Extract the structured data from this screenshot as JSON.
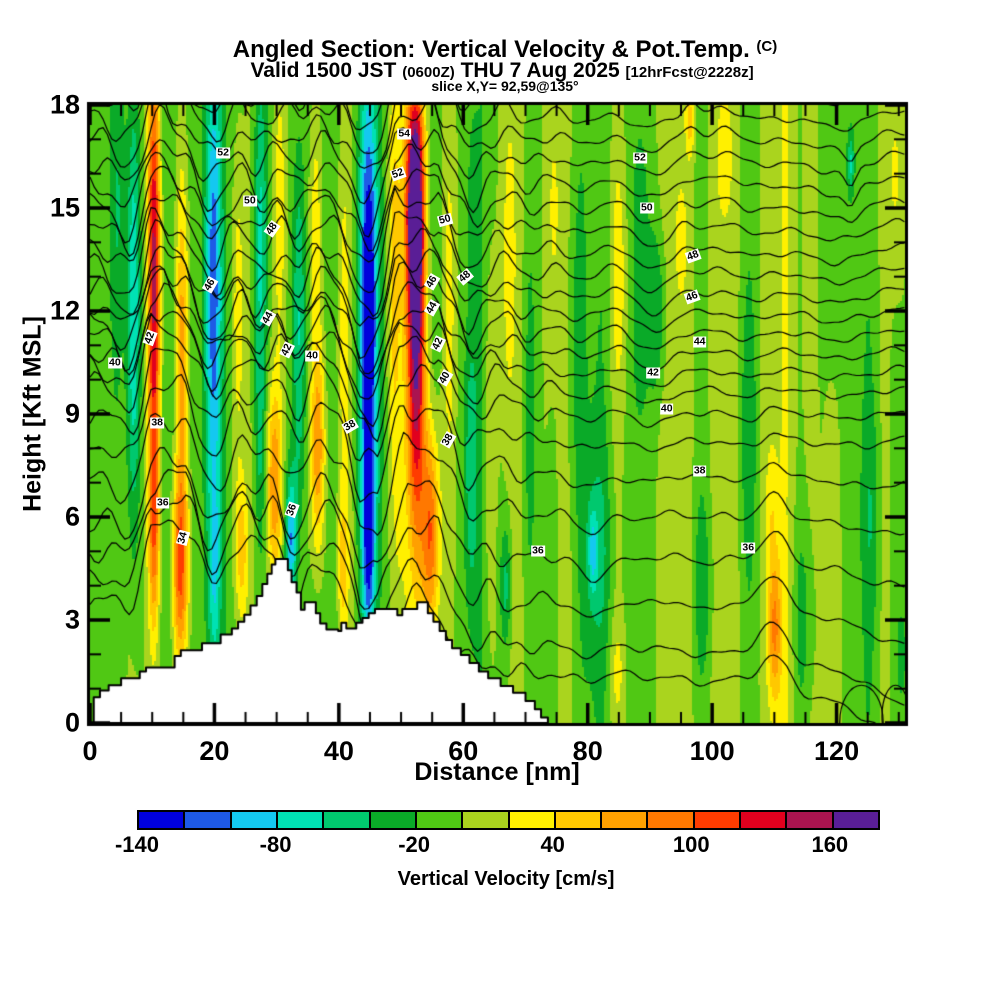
{
  "header": {
    "title_main": "Angled Section: Vertical Velocity & Pot.Temp.",
    "title_unit": "(C)",
    "valid_prefix": "Valid 1500 JST",
    "valid_small1": "(0600Z)",
    "valid_mid": "THU 7 Aug 2025",
    "valid_small2": "[12hrFcst@2228z]",
    "slice_line": "slice X,Y= 92,59@135°"
  },
  "chart_data": {
    "type": "heatmap",
    "title": "Angled Section: Vertical Velocity & Pot.Temp. (C)",
    "subtitle": "Valid 1500 JST (0600Z) THU 7 Aug 2025 [12hrFcst@2228z]",
    "slice": "slice X,Y= 92,59@135°",
    "xlabel": "Distance [nm]",
    "ylabel": "Height [Kft MSL]",
    "xlim": [
      0,
      131
    ],
    "ylim": [
      0,
      18
    ],
    "x_major_ticks": [
      0,
      20,
      40,
      60,
      80,
      100,
      120
    ],
    "x_minor_step": 5,
    "y_major_ticks": [
      0,
      3,
      6,
      9,
      12,
      15,
      18
    ],
    "y_minor_step": 1,
    "grid": false,
    "colorbar": {
      "label": "Vertical Velocity [cm/s]",
      "min": -140,
      "max": 180,
      "step": 20,
      "tick_values": [
        -140,
        -80,
        -20,
        40,
        100,
        160
      ],
      "colors": [
        "#0000DC",
        "#1E5AE6",
        "#14C8F0",
        "#00E1B4",
        "#00C86E",
        "#0AAA28",
        "#50C814",
        "#AAD41E",
        "#FFF000",
        "#FFC800",
        "#FFA000",
        "#FF7800",
        "#FF3C00",
        "#E1001E",
        "#AA1450",
        "#5A1E96"
      ]
    },
    "field": {
      "comment": "vertical velocity cm/s: value = waves(x) + left_bias + sum of gaussian cells [x_nm, z_kft, rx_nm, rz_kft, amp_cms]",
      "waves": [
        [
          8.6,
          9,
          0.7
        ],
        [
          3.9,
          5,
          2.1
        ],
        [
          21,
          7,
          3.6
        ],
        [
          57,
          5,
          0.9
        ]
      ],
      "left_bias": {
        "amount": -7,
        "fade_start": 52,
        "fade_end": 64
      },
      "cells": [
        [
          4.5,
          15,
          1.3,
          4,
          -26
        ],
        [
          7,
          12,
          1.1,
          7,
          -88
        ],
        [
          10.3,
          13,
          1.0,
          6.5,
          150
        ],
        [
          10.3,
          5.5,
          0.9,
          3,
          70
        ],
        [
          14.5,
          4.5,
          1.3,
          2.8,
          105
        ],
        [
          14.8,
          11,
          1.0,
          5,
          72
        ],
        [
          19.8,
          12.5,
          1.3,
          6.5,
          -85
        ],
        [
          20,
          4.5,
          0.9,
          2.5,
          -42
        ],
        [
          23.8,
          12,
          1.0,
          5,
          42
        ],
        [
          24.3,
          5,
          1.1,
          2.2,
          58
        ],
        [
          27.3,
          14,
          1.0,
          5,
          -55
        ],
        [
          27.3,
          8,
          0.8,
          3,
          -28
        ],
        [
          29.6,
          7,
          1.3,
          3,
          85
        ],
        [
          30.5,
          15,
          1.0,
          4,
          40
        ],
        [
          32.3,
          5.3,
          0.9,
          2,
          -95
        ],
        [
          33.6,
          11.5,
          1.1,
          6,
          -70
        ],
        [
          36.6,
          8,
          1.2,
          3.2,
          90
        ],
        [
          36.3,
          14.5,
          1.0,
          4,
          46
        ],
        [
          40.6,
          11,
          1.1,
          7,
          34
        ],
        [
          40.6,
          4.5,
          0.9,
          2,
          48
        ],
        [
          44.8,
          12,
          1.5,
          7,
          -150
        ],
        [
          44.8,
          5,
          1.1,
          3,
          -85
        ],
        [
          48.8,
          13,
          1.0,
          6,
          40
        ],
        [
          52.2,
          15.3,
          1.4,
          3.2,
          178
        ],
        [
          52.4,
          10.5,
          1.5,
          5.5,
          148
        ],
        [
          54.8,
          5.5,
          1.4,
          3,
          108
        ],
        [
          57.8,
          12,
          0.9,
          5,
          28
        ],
        [
          61.2,
          7.5,
          1.2,
          5,
          -55
        ],
        [
          61.5,
          15.5,
          0.9,
          2.5,
          -30
        ],
        [
          64.2,
          8,
          0.9,
          6,
          26
        ],
        [
          66.8,
          4,
          0.9,
          1.8,
          -46
        ],
        [
          67.2,
          13.5,
          1.0,
          4.5,
          30
        ],
        [
          70.5,
          9,
          1.2,
          6,
          -22
        ],
        [
          74.5,
          15,
          1.2,
          4,
          26
        ],
        [
          78,
          11,
          1.5,
          5,
          -20
        ],
        [
          81.5,
          5,
          2.2,
          3.2,
          -33
        ],
        [
          80.8,
          5,
          0.7,
          1.2,
          -50
        ],
        [
          85,
          13,
          1.3,
          3.5,
          30
        ],
        [
          84.8,
          1.5,
          1.2,
          1.5,
          24
        ],
        [
          88.3,
          13,
          1.4,
          6,
          -28
        ],
        [
          91.5,
          12,
          1.4,
          2.8,
          -38
        ],
        [
          95,
          14,
          0.8,
          1.5,
          26
        ],
        [
          96.5,
          17.5,
          0.7,
          1.0,
          44
        ],
        [
          98.5,
          4,
          1.3,
          2.5,
          -30
        ],
        [
          102,
          16.5,
          1.2,
          2.2,
          34
        ],
        [
          105.8,
          8.5,
          1.4,
          4,
          -26
        ],
        [
          110,
          2.8,
          1.1,
          2.2,
          78
        ],
        [
          109.5,
          6.5,
          0.9,
          1.8,
          28
        ],
        [
          114.5,
          3,
          1.4,
          3,
          -30
        ],
        [
          119.5,
          14,
          1.5,
          5,
          -27
        ],
        [
          122.3,
          16.3,
          0.5,
          0.8,
          -52
        ],
        [
          125.5,
          6,
          1.4,
          3.5,
          -24
        ],
        [
          129.5,
          16,
          1.3,
          3,
          28
        ],
        [
          130.5,
          2,
          1.2,
          2,
          -22
        ]
      ]
    },
    "isentropes": {
      "units": "C",
      "interval": 1,
      "comment": "levels: [theta_C, height_kft_at_right_edge, extra_lift_kft_over_mountains]",
      "levels": [
        [
          33,
          1.35,
          3.4
        ],
        [
          34,
          2.2,
          3.2
        ],
        [
          35,
          3.6,
          2.4
        ],
        [
          36,
          4.95,
          1.5
        ],
        [
          37,
          6.2,
          1.45
        ],
        [
          38,
          7.3,
          1.4
        ],
        [
          39,
          8.3,
          1.25
        ],
        [
          40,
          9.1,
          1.3
        ],
        [
          41,
          9.75,
          1.15
        ],
        [
          42,
          10.3,
          1.0
        ],
        [
          43,
          10.85,
          0.85
        ],
        [
          44,
          11.4,
          0.7
        ],
        [
          45,
          11.95,
          0.6
        ],
        [
          46,
          12.5,
          0.5
        ],
        [
          47,
          13.1,
          0.45
        ],
        [
          48,
          13.7,
          0.6
        ],
        [
          49,
          14.35,
          0.5
        ],
        [
          50,
          15.0,
          0.3
        ],
        [
          51,
          15.65,
          0.3
        ],
        [
          52,
          16.3,
          0.3
        ],
        [
          53,
          16.95,
          0.25
        ],
        [
          54,
          17.6,
          0.25
        ],
        [
          55,
          18.25,
          0.2
        ]
      ],
      "dome": {
        "center": 22,
        "width": 30
      },
      "ripple": [
        [
          0.26,
          0.75,
          1.9
        ],
        [
          0.16,
          1.45,
          0.8
        ]
      ],
      "extra_arcs": [
        [
          124,
          0.0,
          3.5,
          1.1
        ],
        [
          129.5,
          0.2,
          2.2,
          0.9
        ]
      ],
      "label_boxes": [
        [
          "52",
          21.4,
          16.6,
          0
        ],
        [
          "54",
          50.5,
          17.15,
          0
        ],
        [
          "52",
          49.5,
          16.0,
          -20
        ],
        [
          "50",
          57.1,
          14.65,
          -15
        ],
        [
          "48",
          60.3,
          13.0,
          -40
        ],
        [
          "46",
          55.0,
          12.85,
          -60
        ],
        [
          "44",
          55.0,
          12.1,
          -60
        ],
        [
          "42",
          55.9,
          11.05,
          -65
        ],
        [
          "40",
          57.1,
          10.05,
          -60
        ],
        [
          "50",
          25.7,
          15.2,
          0
        ],
        [
          "48",
          29.3,
          14.4,
          -55
        ],
        [
          "46",
          19.3,
          12.75,
          -60
        ],
        [
          "44",
          28.6,
          11.8,
          -60
        ],
        [
          "42",
          31.7,
          10.85,
          -65
        ],
        [
          "40",
          35.7,
          10.7,
          0
        ],
        [
          "42",
          9.6,
          11.2,
          -70
        ],
        [
          "40",
          4.0,
          10.5,
          0
        ],
        [
          "38",
          10.8,
          8.75,
          0
        ],
        [
          "36",
          11.7,
          6.4,
          0
        ],
        [
          "34",
          14.9,
          5.4,
          -75
        ],
        [
          "36",
          32.5,
          6.2,
          -70
        ],
        [
          "38",
          41.8,
          8.65,
          -30
        ],
        [
          "38",
          57.6,
          8.25,
          -60
        ],
        [
          "36",
          72.0,
          5.0,
          0
        ],
        [
          "36",
          105.8,
          5.1,
          0
        ],
        [
          "38",
          98.0,
          7.35,
          0
        ],
        [
          "52",
          88.4,
          16.45,
          0
        ],
        [
          "50",
          89.5,
          15.0,
          0
        ],
        [
          "48",
          96.9,
          13.6,
          -20
        ],
        [
          "46",
          96.7,
          12.4,
          -20
        ],
        [
          "44",
          98.0,
          11.1,
          0
        ],
        [
          "42",
          90.5,
          10.2,
          0
        ],
        [
          "40",
          92.7,
          9.15,
          0
        ]
      ]
    },
    "terrain": {
      "color": "#FFFFFF",
      "outline": "#000000",
      "end_x": 73.6,
      "steps": [
        [
          0.6,
          0.75
        ],
        [
          1.6,
          0.95
        ],
        [
          3,
          1.1
        ],
        [
          5,
          1.3
        ],
        [
          8,
          1.5
        ],
        [
          9,
          1.62
        ],
        [
          13,
          1.62
        ],
        [
          13.6,
          1.95
        ],
        [
          14.6,
          2.12
        ],
        [
          17.4,
          2.12
        ],
        [
          18,
          2.32
        ],
        [
          20.4,
          2.32
        ],
        [
          21,
          2.58
        ],
        [
          22.8,
          2.75
        ],
        [
          23.8,
          2.95
        ],
        [
          24.8,
          3.15
        ],
        [
          25.8,
          3.42
        ],
        [
          26.8,
          3.7
        ],
        [
          27.7,
          4.05
        ],
        [
          28.5,
          4.35
        ],
        [
          29.2,
          4.62
        ],
        [
          29.8,
          4.78
        ],
        [
          31.2,
          4.78
        ],
        [
          31.8,
          4.45
        ],
        [
          32.4,
          4.1
        ],
        [
          33.2,
          3.8
        ],
        [
          33.9,
          3.3
        ],
        [
          34.5,
          3.52
        ],
        [
          35.7,
          3.52
        ],
        [
          36.3,
          3.2
        ],
        [
          37,
          2.9
        ],
        [
          38,
          2.72
        ],
        [
          39.9,
          2.68
        ],
        [
          40.4,
          2.92
        ],
        [
          41.2,
          2.75
        ],
        [
          42.8,
          2.92
        ],
        [
          43.8,
          3.06
        ],
        [
          44.8,
          3.2
        ],
        [
          45.8,
          3.32
        ],
        [
          48.9,
          3.32
        ],
        [
          49.4,
          3.14
        ],
        [
          50.2,
          3.32
        ],
        [
          52,
          3.32
        ],
        [
          52.6,
          3.52
        ],
        [
          53.7,
          3.52
        ],
        [
          54.3,
          3.2
        ],
        [
          55.2,
          2.95
        ],
        [
          56.2,
          2.68
        ],
        [
          57.2,
          2.42
        ],
        [
          58.2,
          2.18
        ],
        [
          59.6,
          1.98
        ],
        [
          61,
          1.75
        ],
        [
          62.5,
          1.5
        ],
        [
          64,
          1.3
        ],
        [
          66,
          1.08
        ],
        [
          68,
          0.88
        ],
        [
          70,
          0.64
        ],
        [
          71.5,
          0.4
        ],
        [
          72.5,
          0.16
        ]
      ]
    },
    "layout": {
      "plot_left": 90,
      "plot_top": 105,
      "plot_right": 905,
      "plot_bottom": 723
    }
  }
}
